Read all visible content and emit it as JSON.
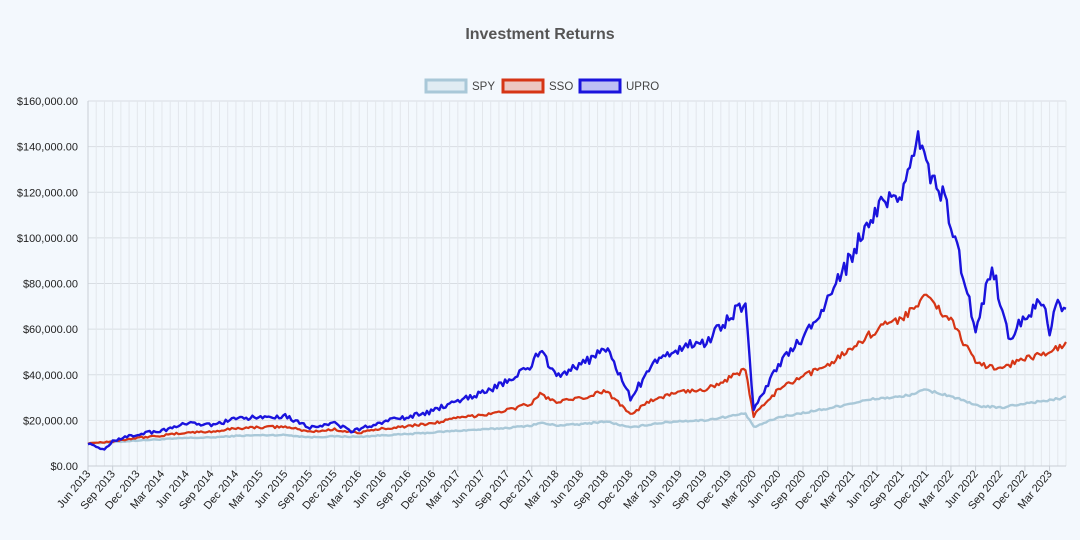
{
  "chart_data": {
    "type": "line",
    "title": "Investment Returns",
    "legend": {
      "position": "top-center",
      "items": [
        {
          "name": "SPY",
          "color": "#a9c8d8"
        },
        {
          "name": "SSO",
          "color": "#d63515"
        },
        {
          "name": "UPRO",
          "color": "#1a13dd"
        }
      ]
    },
    "x_tick_labels": [
      "Jun 2013",
      "Sep 2013",
      "Dec 2013",
      "Mar 2014",
      "Jun 2014",
      "Sep 2014",
      "Dec 2014",
      "Mar 2015",
      "Jun 2015",
      "Sep 2015",
      "Dec 2015",
      "Mar 2016",
      "Jun 2016",
      "Sep 2016",
      "Dec 2016",
      "Mar 2017",
      "Jun 2017",
      "Sep 2017",
      "Dec 2017",
      "Mar 2018",
      "Jun 2018",
      "Sep 2018",
      "Dec 2018",
      "Mar 2019",
      "Jun 2019",
      "Sep 2019",
      "Dec 2019",
      "Mar 2020",
      "Jun 2020",
      "Sep 2020",
      "Dec 2020",
      "Mar 2021",
      "Jun 2021",
      "Sep 2021",
      "Dec 2021",
      "Mar 2022",
      "Jun 2022",
      "Sep 2022",
      "Dec 2022",
      "Mar 2023"
    ],
    "y_tick_labels": [
      "$0.00",
      "$20,000.00",
      "$40,000.00",
      "$60,000.00",
      "$80,000.00",
      "$100,000.00",
      "$120,000.00",
      "$140,000.00",
      "$160,000.00"
    ],
    "x_start": "2013-06",
    "x_end": "2023-05",
    "ylim": [
      0,
      160000
    ],
    "grid": true,
    "series": [
      {
        "name": "SPY",
        "color": "#a9c8d8",
        "x": [
          "2013-06",
          "2013-09",
          "2013-12",
          "2014-03",
          "2014-06",
          "2014-09",
          "2014-12",
          "2015-03",
          "2015-06",
          "2015-09",
          "2015-12",
          "2016-03",
          "2016-06",
          "2016-09",
          "2016-12",
          "2017-03",
          "2017-06",
          "2017-09",
          "2017-12",
          "2018-01",
          "2018-03",
          "2018-06",
          "2018-09",
          "2018-12",
          "2019-03",
          "2019-06",
          "2019-09",
          "2019-12",
          "2020-02",
          "2020-03",
          "2020-06",
          "2020-09",
          "2020-12",
          "2021-03",
          "2021-06",
          "2021-09",
          "2021-12",
          "2022-03",
          "2022-06",
          "2022-09",
          "2022-12",
          "2023-03",
          "2023-05"
        ],
        "values": [
          10000,
          10400,
          11200,
          11700,
          12300,
          12500,
          13200,
          13500,
          13600,
          12600,
          13000,
          12800,
          13500,
          14000,
          14700,
          15500,
          16000,
          16700,
          17800,
          18900,
          17800,
          18300,
          19600,
          16800,
          18600,
          19700,
          20000,
          21800,
          23000,
          17000,
          21300,
          23300,
          25200,
          27600,
          29600,
          30300,
          33300,
          30600,
          26500,
          25500,
          27500,
          28800,
          30000
        ]
      },
      {
        "name": "SSO",
        "color": "#d63515",
        "x": [
          "2013-06",
          "2013-09",
          "2013-12",
          "2014-03",
          "2014-06",
          "2014-09",
          "2014-12",
          "2015-03",
          "2015-06",
          "2015-09",
          "2015-12",
          "2016-03",
          "2016-06",
          "2016-09",
          "2016-12",
          "2017-03",
          "2017-06",
          "2017-09",
          "2017-12",
          "2018-01",
          "2018-03",
          "2018-06",
          "2018-09",
          "2018-12",
          "2019-03",
          "2019-06",
          "2019-09",
          "2019-12",
          "2020-02",
          "2020-03",
          "2020-06",
          "2020-09",
          "2020-12",
          "2021-03",
          "2021-06",
          "2021-09",
          "2021-12",
          "2022-03",
          "2022-06",
          "2022-09",
          "2022-12",
          "2023-03",
          "2023-05"
        ],
        "values": [
          10000,
          10800,
          12400,
          13300,
          14700,
          15000,
          16500,
          17000,
          17200,
          15000,
          16000,
          14500,
          16500,
          17500,
          18800,
          21000,
          22500,
          24500,
          27500,
          31500,
          28000,
          29500,
          33000,
          23000,
          29500,
          32500,
          33500,
          38500,
          42000,
          22000,
          33500,
          39000,
          44500,
          52000,
          60000,
          65000,
          74000,
          64000,
          45000,
          43000,
          47000,
          50000,
          53000
        ]
      },
      {
        "name": "UPRO",
        "color": "#1a13dd",
        "x": [
          "2013-06",
          "2013-08",
          "2013-09",
          "2013-12",
          "2014-03",
          "2014-06",
          "2014-09",
          "2014-12",
          "2015-03",
          "2015-06",
          "2015-09",
          "2015-12",
          "2016-02",
          "2016-06",
          "2016-09",
          "2016-12",
          "2017-03",
          "2017-06",
          "2017-09",
          "2017-12",
          "2018-01",
          "2018-03",
          "2018-06",
          "2018-09",
          "2018-12",
          "2019-03",
          "2019-06",
          "2019-09",
          "2019-12",
          "2020-02",
          "2020-03",
          "2020-06",
          "2020-09",
          "2020-12",
          "2021-03",
          "2021-06",
          "2021-09",
          "2021-11",
          "2021-12",
          "2022-01",
          "2022-03",
          "2022-06",
          "2022-08",
          "2022-10",
          "2022-12",
          "2023-02",
          "2023-03",
          "2023-04",
          "2023-05"
        ],
        "values": [
          10000,
          7000,
          11000,
          14000,
          15500,
          18500,
          18000,
          20500,
          21500,
          22000,
          17000,
          19000,
          15000,
          19500,
          21500,
          24000,
          29000,
          32000,
          37000,
          44000,
          51000,
          40000,
          44000,
          52000,
          30000,
          45000,
          52000,
          54000,
          65000,
          72000,
          25000,
          44000,
          56000,
          72000,
          93000,
          112000,
          118000,
          143000,
          130000,
          128000,
          108000,
          60000,
          88000,
          56000,
          66000,
          72000,
          60000,
          70000,
          72000
        ]
      }
    ]
  }
}
